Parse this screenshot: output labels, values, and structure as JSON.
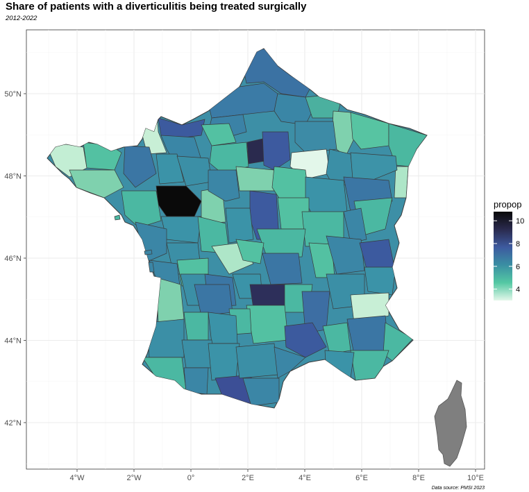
{
  "title": "Share of patients with a diverticulitis being treated surgically",
  "subtitle": "2012-2022",
  "caption": "Data source: PMSI 2023",
  "chart_data": {
    "type": "choropleth map",
    "region": "Metropolitan France (departments)",
    "x_ticks": [
      "4°W",
      "2°W",
      "0°",
      "2°E",
      "4°E",
      "6°E",
      "8°E",
      "10°E"
    ],
    "y_ticks": [
      "42°N",
      "44°N",
      "46°N",
      "48°N",
      "50°N"
    ],
    "xlim": [
      -5.8,
      10.3
    ],
    "ylim": [
      41.0,
      51.6
    ],
    "grid": true,
    "legend": {
      "title": "propop",
      "position": "right",
      "ticks": [
        4,
        6,
        8,
        10
      ],
      "range": [
        3,
        10.8
      ],
      "colors": [
        "#e3f7ea",
        "#54c8a3",
        "#3a8fa3",
        "#3d5a9f",
        "#2a2a4e",
        "#0a0a0a"
      ]
    },
    "missing_color": "#7f7f7f",
    "missing_regions": [
      "Corse"
    ]
  }
}
